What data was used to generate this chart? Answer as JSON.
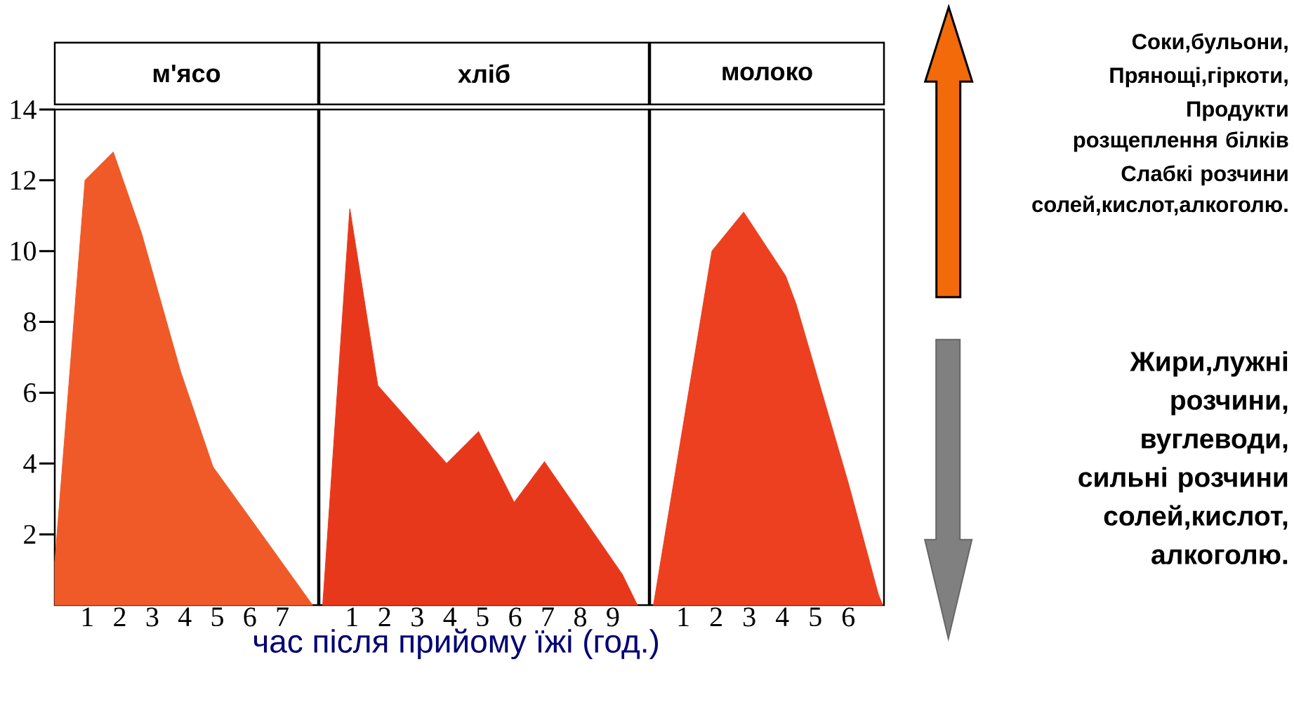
{
  "chart_data": [
    {
      "type": "area",
      "title": "м'ясо",
      "xlim": [
        0,
        8.1
      ],
      "ylim": [
        0,
        14
      ],
      "xticks": [
        1,
        2,
        3,
        4,
        5,
        6,
        7
      ],
      "yticks": [
        2,
        4,
        6,
        8,
        10,
        12,
        14
      ],
      "series": [
        {
          "color": "#f05a28",
          "x": [
            0,
            0.93,
            1.8,
            2.67,
            3.87,
            4.87,
            6.13,
            7.93
          ],
          "values": [
            1.2,
            12,
            12.8,
            10.5,
            6.6,
            3.9,
            2.3,
            0
          ]
        }
      ]
    },
    {
      "type": "area",
      "title": "хліб",
      "xlabel": "час після прийому їжі (год.)",
      "xlim": [
        0,
        10.1
      ],
      "ylim": [
        0,
        14
      ],
      "xticks": [
        1,
        2,
        3,
        4,
        5,
        6,
        7,
        8,
        9
      ],
      "tick_labels": "x",
      "series": [
        {
          "color": "#e8381c",
          "x": [
            0.1,
            0.93,
            1.79,
            3.9,
            4.88,
            5.97,
            6.9,
            9.3,
            9.75
          ],
          "values": [
            0,
            11.2,
            6.2,
            4.0,
            4.9,
            2.9,
            4.05,
            0.85,
            0
          ]
        }
      ]
    },
    {
      "type": "area",
      "title": "молоко",
      "xlim": [
        0,
        7.08
      ],
      "ylim": [
        0,
        14
      ],
      "xticks": [
        1,
        2,
        3,
        4,
        5,
        6
      ],
      "tick_labels": "x",
      "series": [
        {
          "color": "#ec4020",
          "x": [
            0.1,
            1.87,
            2.83,
            4.1,
            4.42,
            6.0,
            6.91,
            7.04
          ],
          "values": [
            0,
            10,
            11.1,
            9.3,
            8.5,
            3.45,
            0.3,
            0
          ]
        }
      ]
    },
    {
      "type": "other",
      "annotations": [
        "Соки,бульони,",
        "Прянощі,гіркоти,",
        "Продукти розщеплення білків",
        "Слабкі розчини солей,кислот,алкоголю."
      ]
    },
    {
      "type": "other",
      "annotations": [
        "Жири,лужні розчини, вуглеводи, сильні розчини солей,кислот, алкоголю."
      ]
    }
  ]
}
